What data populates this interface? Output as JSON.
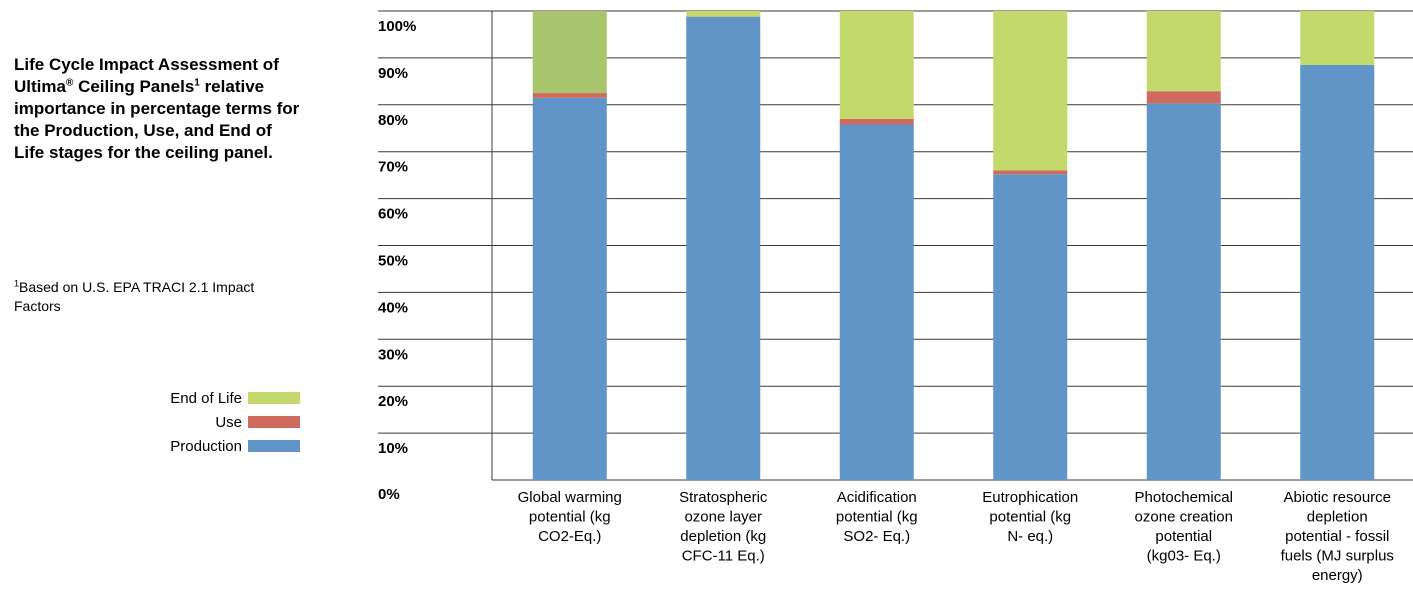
{
  "side_text": {
    "title_part1": "Life Cycle Impact Assessment of Ultima",
    "title_sup1": "®",
    "title_part2": " Ceiling Panels",
    "title_sup2": "1",
    "title_part3": " relative importance in percentage terms for the Production, Use, and End of Life stages for the ceiling panel.",
    "footnote_mark": "1",
    "footnote_text": "Based on U.S. EPA TRACI 2.1 Impact Factors"
  },
  "legend": {
    "items": [
      {
        "label": "End of Life",
        "color": "#c3d96b"
      },
      {
        "label": "Use",
        "color": "#cf6a5e"
      },
      {
        "label": "Production",
        "color": "#6195c8"
      }
    ]
  },
  "chart_data": {
    "type": "bar",
    "stacked": true,
    "title": "",
    "xlabel": "",
    "ylabel": "",
    "ylim": [
      0,
      100
    ],
    "yticks": [
      "0%",
      "10%",
      "20%",
      "30%",
      "40%",
      "50%",
      "60%",
      "70%",
      "80%",
      "90%",
      "100%"
    ],
    "grid": true,
    "categories": [
      [
        "Global warming",
        "potential (kg",
        "CO2-Eq.)"
      ],
      [
        "Stratospheric",
        "ozone layer",
        "depletion (kg",
        "CFC-11 Eq.)"
      ],
      [
        "Acidification",
        "potential (kg",
        "SO2- Eq.)"
      ],
      [
        "Eutrophication",
        "potential (kg",
        "N- eq.)"
      ],
      [
        "Photochemical",
        "ozone creation",
        "potential",
        "(kg03- Eq.)"
      ],
      [
        "Abiotic resource",
        "depletion",
        "potential - fossil",
        "fuels (MJ surplus",
        "energy)"
      ]
    ],
    "series": [
      {
        "name": "Production",
        "color": "#6195c8",
        "values": [
          81.5,
          98.8,
          75.8,
          65.2,
          80.3,
          88.5
        ]
      },
      {
        "name": "Use",
        "color": "#cf6a5e",
        "values": [
          1.0,
          0.0,
          1.2,
          0.8,
          2.6,
          0.0
        ]
      },
      {
        "name": "End of Life",
        "color": "#c3d96b",
        "values": [
          17.5,
          1.2,
          23.0,
          34.0,
          17.1,
          11.5
        ]
      }
    ],
    "series_colors_override": [
      [
        "#a8c46c",
        "#cf6a5e",
        "#6195c8"
      ]
    ]
  }
}
